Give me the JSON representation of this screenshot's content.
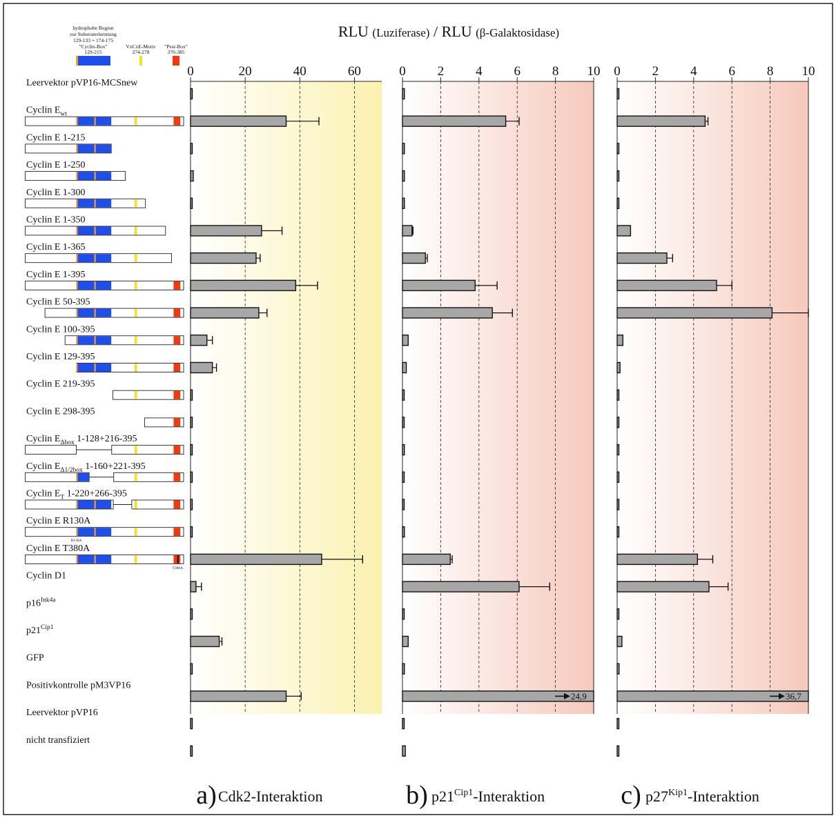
{
  "header": {
    "title_main": "RLU",
    "title_p1": "(Luziferase)",
    "title_sep": "/",
    "title_p2": "(β-Galaktosidase)"
  },
  "legend": {
    "hydro_line1": "hydrophobe Region",
    "hydro_line2": "zur Substraterkennung",
    "hydro_line3": "129-133 + 174-175",
    "cyclin_box_label": "\"Cyclin-Box\"",
    "cyclin_box_range": "129-215",
    "vxcxe_label": "VxCxE-Motiv",
    "vxcxe_range": "274-278",
    "pest_label": "\"Pest-Box\"",
    "pest_range": "370-385"
  },
  "colors": {
    "cyclin_box": "#1f4fe8",
    "hydrophobic": "#f0a030",
    "vxcxe": "#f5e31a",
    "pest": "#f03a10",
    "bar": "#a7a7a7",
    "bg_a": "#fbf1b0",
    "bg_bc": "#f6c9bc"
  },
  "mutation_labels": {
    "r130a": "R130A",
    "t380a": "T380A"
  },
  "row_labels": [
    {
      "base": "Leervektor pVP16-MCSnew",
      "sub": "",
      "sup": "",
      "rest": ""
    },
    {
      "base": "Cyclin E",
      "sub": "wt",
      "sup": "",
      "rest": ""
    },
    {
      "base": "Cyclin E 1-215",
      "sub": "",
      "sup": "",
      "rest": ""
    },
    {
      "base": "Cyclin E 1-250",
      "sub": "",
      "sup": "",
      "rest": ""
    },
    {
      "base": "Cyclin E 1-300",
      "sub": "",
      "sup": "",
      "rest": ""
    },
    {
      "base": "Cyclin E 1-350",
      "sub": "",
      "sup": "",
      "rest": ""
    },
    {
      "base": "Cyclin E 1-365",
      "sub": "",
      "sup": "",
      "rest": ""
    },
    {
      "base": "Cyclin E 1-395",
      "sub": "",
      "sup": "",
      "rest": ""
    },
    {
      "base": "Cyclin E 50-395",
      "sub": "",
      "sup": "",
      "rest": ""
    },
    {
      "base": "Cyclin E 100-395",
      "sub": "",
      "sup": "",
      "rest": ""
    },
    {
      "base": "Cyclin E 129-395",
      "sub": "",
      "sup": "",
      "rest": ""
    },
    {
      "base": "Cyclin E 219-395",
      "sub": "",
      "sup": "",
      "rest": ""
    },
    {
      "base": "Cyclin E 298-395",
      "sub": "",
      "sup": "",
      "rest": ""
    },
    {
      "base": "Cyclin E",
      "sub": "Δbox",
      "sup": "",
      "rest": " 1-128+216-395"
    },
    {
      "base": "Cyclin E",
      "sub": "Δ1/2box",
      "sup": "",
      "rest": " 1-160+221-395"
    },
    {
      "base": "Cyclin E",
      "sub": "T",
      "sup": "",
      "rest": " 1-220+266-395"
    },
    {
      "base": "Cyclin E R130A",
      "sub": "",
      "sup": "",
      "rest": ""
    },
    {
      "base": "Cyclin E T380A",
      "sub": "",
      "sup": "",
      "rest": ""
    },
    {
      "base": "Cyclin D1",
      "sub": "",
      "sup": "",
      "rest": ""
    },
    {
      "base": "p16",
      "sub": "",
      "sup": "Ink4a",
      "rest": ""
    },
    {
      "base": "p21",
      "sub": "",
      "sup": "Cip1",
      "rest": ""
    },
    {
      "base": "GFP",
      "sub": "",
      "sup": "",
      "rest": ""
    },
    {
      "base": "Positivkontrolle pM3VP16",
      "sub": "",
      "sup": "",
      "rest": ""
    },
    {
      "base": "Leervektor pVP16",
      "sub": "",
      "sup": "",
      "rest": ""
    },
    {
      "base": "nicht transfiziert",
      "sub": "",
      "sup": "",
      "rest": ""
    }
  ],
  "constructs": [
    null,
    {
      "segments": [
        [
          1,
          395
        ]
      ],
      "box": [
        [
          129,
          215
        ]
      ],
      "hydro": [
        129,
        174
      ],
      "vxcxe": true,
      "pest": true
    },
    {
      "segments": [
        [
          1,
          215
        ]
      ],
      "box": [
        [
          129,
          215
        ]
      ],
      "hydro": [
        129,
        174
      ],
      "vxcxe": false,
      "pest": false
    },
    {
      "segments": [
        [
          1,
          250
        ]
      ],
      "box": [
        [
          129,
          215
        ]
      ],
      "hydro": [
        129,
        174
      ],
      "vxcxe": false,
      "pest": false
    },
    {
      "segments": [
        [
          1,
          300
        ]
      ],
      "box": [
        [
          129,
          215
        ]
      ],
      "hydro": [
        129,
        174
      ],
      "vxcxe": true,
      "pest": false
    },
    {
      "segments": [
        [
          1,
          350
        ]
      ],
      "box": [
        [
          129,
          215
        ]
      ],
      "hydro": [
        129,
        174
      ],
      "vxcxe": true,
      "pest": false
    },
    {
      "segments": [
        [
          1,
          365
        ]
      ],
      "box": [
        [
          129,
          215
        ]
      ],
      "hydro": [
        129,
        174
      ],
      "vxcxe": true,
      "pest": false
    },
    {
      "segments": [
        [
          1,
          395
        ]
      ],
      "box": [
        [
          129,
          215
        ]
      ],
      "hydro": [
        129,
        174
      ],
      "vxcxe": true,
      "pest": true
    },
    {
      "segments": [
        [
          50,
          395
        ]
      ],
      "box": [
        [
          129,
          215
        ]
      ],
      "hydro": [
        129,
        174
      ],
      "vxcxe": true,
      "pest": true
    },
    {
      "segments": [
        [
          100,
          395
        ]
      ],
      "box": [
        [
          129,
          215
        ]
      ],
      "hydro": [
        129,
        174
      ],
      "vxcxe": true,
      "pest": true
    },
    {
      "segments": [
        [
          129,
          395
        ]
      ],
      "box": [
        [
          129,
          215
        ]
      ],
      "hydro": [
        129,
        174
      ],
      "vxcxe": true,
      "pest": true
    },
    {
      "segments": [
        [
          219,
          395
        ]
      ],
      "box": [],
      "hydro": [],
      "vxcxe": true,
      "pest": true
    },
    {
      "segments": [
        [
          298,
          395
        ]
      ],
      "box": [],
      "hydro": [],
      "vxcxe": false,
      "pest": true
    },
    {
      "segments": [
        [
          1,
          128
        ],
        [
          216,
          395
        ]
      ],
      "box": [],
      "hydro": [],
      "vxcxe": true,
      "pest": true
    },
    {
      "segments": [
        [
          1,
          160
        ],
        [
          221,
          395
        ]
      ],
      "box": [
        [
          129,
          160
        ]
      ],
      "hydro": [
        129
      ],
      "vxcxe": true,
      "pest": true
    },
    {
      "segments": [
        [
          1,
          220
        ],
        [
          266,
          395
        ]
      ],
      "box": [
        [
          129,
          215
        ]
      ],
      "hydro": [
        129,
        174
      ],
      "vxcxe": true,
      "pest": true
    },
    {
      "segments": [
        [
          1,
          395
        ]
      ],
      "box": [
        [
          129,
          215
        ]
      ],
      "hydro": [
        129,
        174
      ],
      "vxcxe": true,
      "pest": true,
      "mutation": "r130a"
    },
    {
      "segments": [
        [
          1,
          395
        ]
      ],
      "box": [
        [
          129,
          215
        ]
      ],
      "hydro": [
        129,
        174
      ],
      "vxcxe": true,
      "pest": true,
      "mutation": "t380a"
    },
    null,
    null,
    null,
    null,
    null,
    null,
    null
  ],
  "chart_data": [
    {
      "type": "bar",
      "orientation": "horizontal",
      "panel_letter": "a)",
      "title_main": "Cdk2-Interaktion",
      "title_sup": "",
      "title_rest": "",
      "xlim": [
        0,
        70
      ],
      "ticks": [
        0,
        20,
        40,
        60
      ],
      "grid": "dashed vertical",
      "values": [
        0.5,
        35,
        0.4,
        1,
        0.3,
        26,
        24,
        38.5,
        25,
        6,
        8,
        0.5,
        0.3,
        0.3,
        0.4,
        0.3,
        0.3,
        48,
        2,
        0.2,
        10.5,
        0.2,
        35,
        0.2,
        0.2
      ],
      "errors": [
        0,
        12,
        0,
        0,
        0,
        7.5,
        1.5,
        8,
        3,
        2,
        1.5,
        0,
        0,
        0,
        0,
        0,
        0,
        15,
        2,
        0,
        1,
        0,
        5.5,
        0,
        0
      ],
      "overflow": [
        null,
        null,
        null,
        null,
        null,
        null,
        null,
        null,
        null,
        null,
        null,
        null,
        null,
        null,
        null,
        null,
        null,
        null,
        null,
        null,
        null,
        null,
        null,
        null,
        null
      ]
    },
    {
      "type": "bar",
      "orientation": "horizontal",
      "panel_letter": "b)",
      "title_main": "p21",
      "title_sup": "Cip1",
      "title_rest": "-Interaktion",
      "xlim": [
        0,
        10
      ],
      "ticks": [
        0,
        2,
        4,
        6,
        8,
        10
      ],
      "grid": "dashed vertical",
      "values": [
        0.1,
        5.4,
        0.1,
        0.1,
        0.1,
        0.5,
        1.2,
        3.8,
        4.7,
        0.3,
        0.2,
        0.05,
        0.05,
        0.1,
        0.05,
        0.05,
        0.1,
        2.5,
        6.1,
        0.05,
        0.3,
        0.1,
        10,
        0.05,
        0.15
      ],
      "errors": [
        0,
        0.7,
        0,
        0,
        0,
        0.05,
        0.1,
        1.15,
        1.05,
        0,
        0,
        0,
        0,
        0,
        0,
        0,
        0,
        0.1,
        1.6,
        0,
        0,
        0,
        0,
        0,
        0
      ],
      "overflow": [
        null,
        null,
        null,
        null,
        null,
        null,
        null,
        null,
        null,
        null,
        null,
        null,
        null,
        null,
        null,
        null,
        null,
        null,
        null,
        null,
        null,
        null,
        "24,9",
        null,
        null
      ]
    },
    {
      "type": "bar",
      "orientation": "horizontal",
      "panel_letter": "c)",
      "title_main": "p27",
      "title_sup": "Kip1",
      "title_rest": "-Interaktion",
      "xlim": [
        0,
        10
      ],
      "ticks": [
        0,
        2,
        4,
        6,
        8,
        10
      ],
      "grid": "dashed vertical",
      "values": [
        0.05,
        4.6,
        0.05,
        0.05,
        0.05,
        0.7,
        2.6,
        5.2,
        8.1,
        0.3,
        0.15,
        0.05,
        0.05,
        0.05,
        0.05,
        0.05,
        0.05,
        4.2,
        4.8,
        0.05,
        0.25,
        0.1,
        10,
        0.05,
        0.05
      ],
      "errors": [
        0,
        0.15,
        0,
        0,
        0,
        0,
        0.3,
        0.8,
        1.9,
        0,
        0,
        0,
        0,
        0,
        0,
        0,
        0,
        0.8,
        1,
        0,
        0,
        0,
        0,
        0,
        0
      ],
      "overflow": [
        null,
        null,
        null,
        null,
        null,
        null,
        null,
        null,
        null,
        null,
        null,
        null,
        null,
        null,
        null,
        null,
        null,
        null,
        null,
        null,
        null,
        null,
        "36,7",
        null,
        null
      ]
    }
  ]
}
